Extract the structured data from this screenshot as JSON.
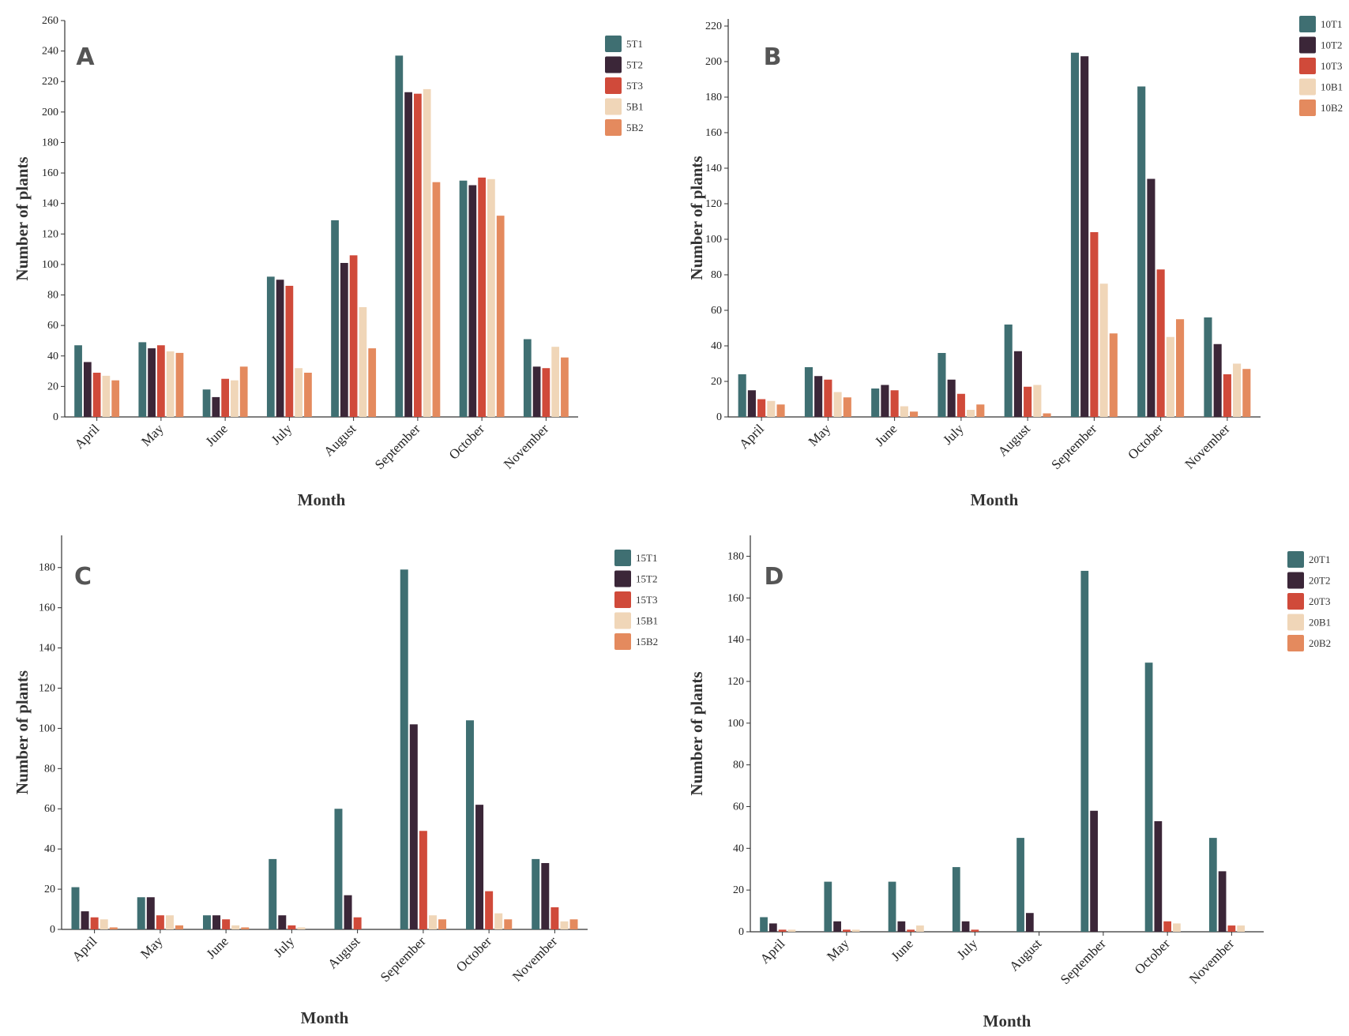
{
  "colors": [
    "#3f6f72",
    "#3b2638",
    "#d04a3a",
    "#f0d6b8",
    "#e48a5e"
  ],
  "chart_data": [
    {
      "type": "bar",
      "panel_label": "A",
      "xlabel": "Month",
      "ylabel": "Number of plants",
      "ylim": [
        0,
        260
      ],
      "yticks": [
        0,
        20,
        40,
        60,
        80,
        100,
        120,
        140,
        160,
        180,
        200,
        220,
        240,
        260
      ],
      "categories": [
        "April",
        "May",
        "June",
        "July",
        "August",
        "September",
        "October",
        "November"
      ],
      "series": [
        {
          "name": "5T1",
          "values": [
            47,
            49,
            18,
            92,
            129,
            237,
            155,
            51
          ]
        },
        {
          "name": "5T2",
          "values": [
            36,
            45,
            13,
            90,
            101,
            213,
            152,
            33
          ]
        },
        {
          "name": "5T3",
          "values": [
            29,
            47,
            25,
            86,
            106,
            212,
            157,
            32
          ]
        },
        {
          "name": "5B1",
          "values": [
            27,
            43,
            24,
            32,
            72,
            215,
            156,
            46
          ]
        },
        {
          "name": "5B2",
          "values": [
            24,
            42,
            33,
            29,
            45,
            154,
            132,
            39
          ]
        }
      ],
      "legend": "top-right"
    },
    {
      "type": "bar",
      "panel_label": "B",
      "xlabel": "Month",
      "ylabel": "Number of plants",
      "ylim": [
        0,
        224
      ],
      "yticks": [
        0,
        20,
        40,
        60,
        80,
        100,
        120,
        140,
        160,
        180,
        200,
        220
      ],
      "categories": [
        "April",
        "May",
        "June",
        "July",
        "August",
        "September",
        "October",
        "November"
      ],
      "series": [
        {
          "name": "10T1",
          "values": [
            24,
            28,
            16,
            36,
            52,
            205,
            186,
            56
          ]
        },
        {
          "name": "10T2",
          "values": [
            15,
            23,
            18,
            21,
            37,
            203,
            134,
            41
          ]
        },
        {
          "name": "10T3",
          "values": [
            10,
            21,
            15,
            13,
            17,
            104,
            83,
            24
          ]
        },
        {
          "name": "10B1",
          "values": [
            9,
            14,
            6,
            4,
            18,
            75,
            45,
            30
          ]
        },
        {
          "name": "10B2",
          "values": [
            7,
            11,
            3,
            7,
            2,
            47,
            55,
            27
          ]
        }
      ],
      "legend": "top-right"
    },
    {
      "type": "bar",
      "panel_label": "C",
      "xlabel": "Month",
      "ylabel": "Number of plants",
      "ylim": [
        0,
        196
      ],
      "yticks": [
        0,
        20,
        40,
        60,
        80,
        100,
        120,
        140,
        160,
        180
      ],
      "categories": [
        "April",
        "May",
        "June",
        "July",
        "August",
        "September",
        "October",
        "November"
      ],
      "series": [
        {
          "name": "15T1",
          "values": [
            21,
            16,
            7,
            35,
            60,
            179,
            104,
            35
          ]
        },
        {
          "name": "15T2",
          "values": [
            9,
            16,
            7,
            7,
            17,
            102,
            62,
            33
          ]
        },
        {
          "name": "15T3",
          "values": [
            6,
            7,
            5,
            2,
            6,
            49,
            19,
            11
          ]
        },
        {
          "name": "15B1",
          "values": [
            5,
            7,
            2,
            1,
            0,
            7,
            8,
            4
          ]
        },
        {
          "name": "15B2",
          "values": [
            1,
            2,
            1,
            0,
            0,
            5,
            5,
            5
          ]
        }
      ],
      "legend": "top-right"
    },
    {
      "type": "bar",
      "panel_label": "D",
      "xlabel": "Month",
      "ylabel": "Number of plants",
      "ylim": [
        0,
        190
      ],
      "yticks": [
        0,
        20,
        40,
        60,
        80,
        100,
        120,
        140,
        160,
        180
      ],
      "categories": [
        "April",
        "May",
        "June",
        "July",
        "August",
        "September",
        "October",
        "November"
      ],
      "series": [
        {
          "name": "20T1",
          "values": [
            7,
            24,
            24,
            31,
            45,
            173,
            129,
            45
          ]
        },
        {
          "name": "20T2",
          "values": [
            4,
            5,
            5,
            5,
            9,
            58,
            53,
            29
          ]
        },
        {
          "name": "20T3",
          "values": [
            1,
            1,
            1,
            1,
            0,
            0,
            5,
            3
          ]
        },
        {
          "name": "20B1",
          "values": [
            1,
            1,
            3,
            0,
            0,
            0,
            4,
            3
          ]
        },
        {
          "name": "20B2",
          "values": [
            0,
            0,
            0,
            0,
            0,
            0,
            0,
            0
          ]
        }
      ],
      "legend": "top-right"
    }
  ]
}
